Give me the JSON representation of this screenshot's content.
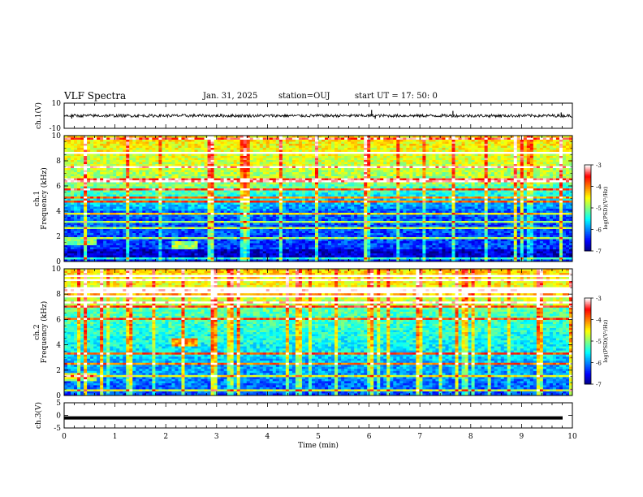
{
  "header": {
    "title": "VLF Spectra",
    "date": "Jan. 31, 2025",
    "station": "station=OUJ",
    "start": "start UT =  17: 50: 0"
  },
  "chart_data": [
    {
      "type": "line",
      "panel": "ch1-waveform",
      "ylabel": "ch.1(V)",
      "ylim": [
        -10,
        10
      ],
      "yticks": [
        "10",
        "-10"
      ],
      "xlim": [
        0,
        10
      ],
      "series": [
        {
          "values_description_note": "",
          "baseline": 0,
          "noise_amplitude": 1.2,
          "spikes": [
            [
              0.15,
              -2.2
            ],
            [
              6.05,
              4.6
            ],
            [
              6.12,
              -2.4
            ],
            [
              7.65,
              3.8
            ],
            [
              9.78,
              2.6
            ]
          ]
        }
      ]
    },
    {
      "type": "heatmap",
      "panel": "ch1-spectrogram",
      "ylabel": "ch.1\nFrequency (kHz)",
      "ylim": [
        0,
        10
      ],
      "yticks": [
        "0",
        "2",
        "4",
        "6",
        "8",
        "10"
      ],
      "xlim": [
        0,
        10
      ],
      "colorbar": {
        "label": "log(PSD)(V²/Hz)",
        "range": [
          -7,
          -3
        ],
        "ticks": [
          "-3",
          "-4",
          "-5",
          "-6",
          "-7"
        ],
        "colors": [
          "#00007f",
          "#0000ff",
          "#0080ff",
          "#00ffff",
          "#80ff80",
          "#ffff00",
          "#ff8000",
          "#ff0000",
          "#ffffff"
        ]
      }
    },
    {
      "type": "heatmap",
      "panel": "ch2-spectrogram",
      "ylabel": "ch.2\nFrequency (kHz)",
      "ylim": [
        0,
        10
      ],
      "yticks": [
        "0",
        "2",
        "4",
        "6",
        "8",
        "10"
      ],
      "xlim": [
        0,
        10
      ],
      "colorbar": {
        "label": "log(PSD)(V²/Hz)",
        "range": [
          -7,
          -3
        ],
        "ticks": [
          "-3",
          "-4",
          "-5",
          "-6",
          "-7"
        ],
        "colors": [
          "#00007f",
          "#0000ff",
          "#0080ff",
          "#00ffff",
          "#80ff80",
          "#ffff00",
          "#ff8000",
          "#ff0000",
          "#ffffff"
        ]
      }
    },
    {
      "type": "line",
      "panel": "ch3-waveform",
      "ylabel": "ch.3(V)",
      "ylim": [
        -5,
        5
      ],
      "yticks": [
        "5",
        "0",
        "-5"
      ],
      "xlim": [
        0,
        10
      ],
      "series": [
        {
          "constant": -1.0
        }
      ]
    }
  ],
  "xaxis": {
    "label": "Time (min)",
    "ticks": [
      "0",
      "1",
      "2",
      "3",
      "4",
      "5",
      "6",
      "7",
      "8",
      "9",
      "10"
    ]
  }
}
